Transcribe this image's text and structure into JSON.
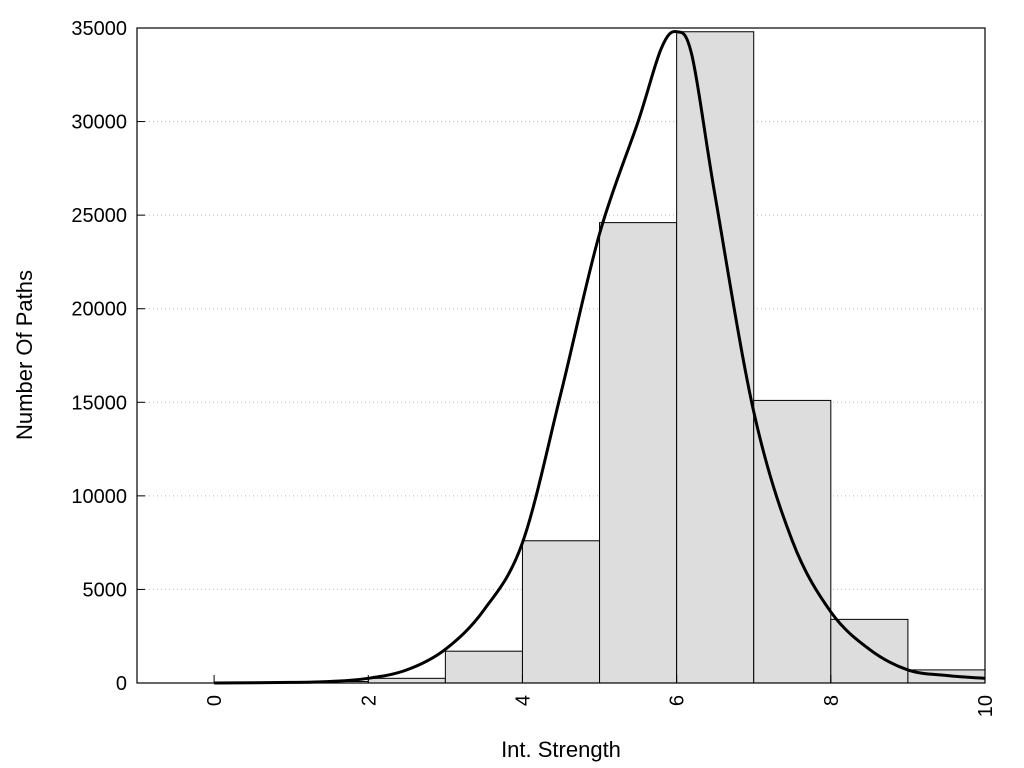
{
  "chart_data": {
    "type": "bar",
    "title": "",
    "xlabel": "Int. Strength",
    "ylabel": "Number Of Paths",
    "xlim": [
      -1,
      10
    ],
    "ylim": [
      0,
      35000
    ],
    "x_ticks": [
      0,
      2,
      4,
      6,
      8,
      10
    ],
    "y_ticks": [
      0,
      5000,
      10000,
      15000,
      20000,
      25000,
      30000,
      35000
    ],
    "grid": "horizontal-dotted",
    "bar_color": "#dddddd",
    "bins": [
      {
        "x0": 0,
        "x1": 1,
        "value": 30
      },
      {
        "x0": 1,
        "x1": 2,
        "value": 80
      },
      {
        "x0": 2,
        "x1": 3,
        "value": 250
      },
      {
        "x0": 3,
        "x1": 4,
        "value": 1700
      },
      {
        "x0": 4,
        "x1": 5,
        "value": 7600
      },
      {
        "x0": 5,
        "x1": 6,
        "value": 24600
      },
      {
        "x0": 6,
        "x1": 7,
        "value": 34800
      },
      {
        "x0": 7,
        "x1": 8,
        "value": 15100
      },
      {
        "x0": 8,
        "x1": 9,
        "value": 3400
      },
      {
        "x0": 9,
        "x1": 10,
        "value": 700
      },
      {
        "x0": 10,
        "x1": 11,
        "value": 250
      }
    ],
    "density_curve": {
      "x": [
        0,
        1,
        1.5,
        2,
        2.5,
        3,
        3.5,
        4,
        4.5,
        5,
        5.5,
        5.8,
        6.0,
        6.2,
        6.5,
        7,
        7.5,
        8,
        8.5,
        9,
        9.5,
        10
      ],
      "y": [
        0,
        30,
        80,
        250,
        700,
        1800,
        3900,
        7500,
        15500,
        24000,
        30000,
        33900,
        34800,
        33500,
        26000,
        14500,
        7600,
        3800,
        1800,
        700,
        400,
        250
      ]
    }
  }
}
